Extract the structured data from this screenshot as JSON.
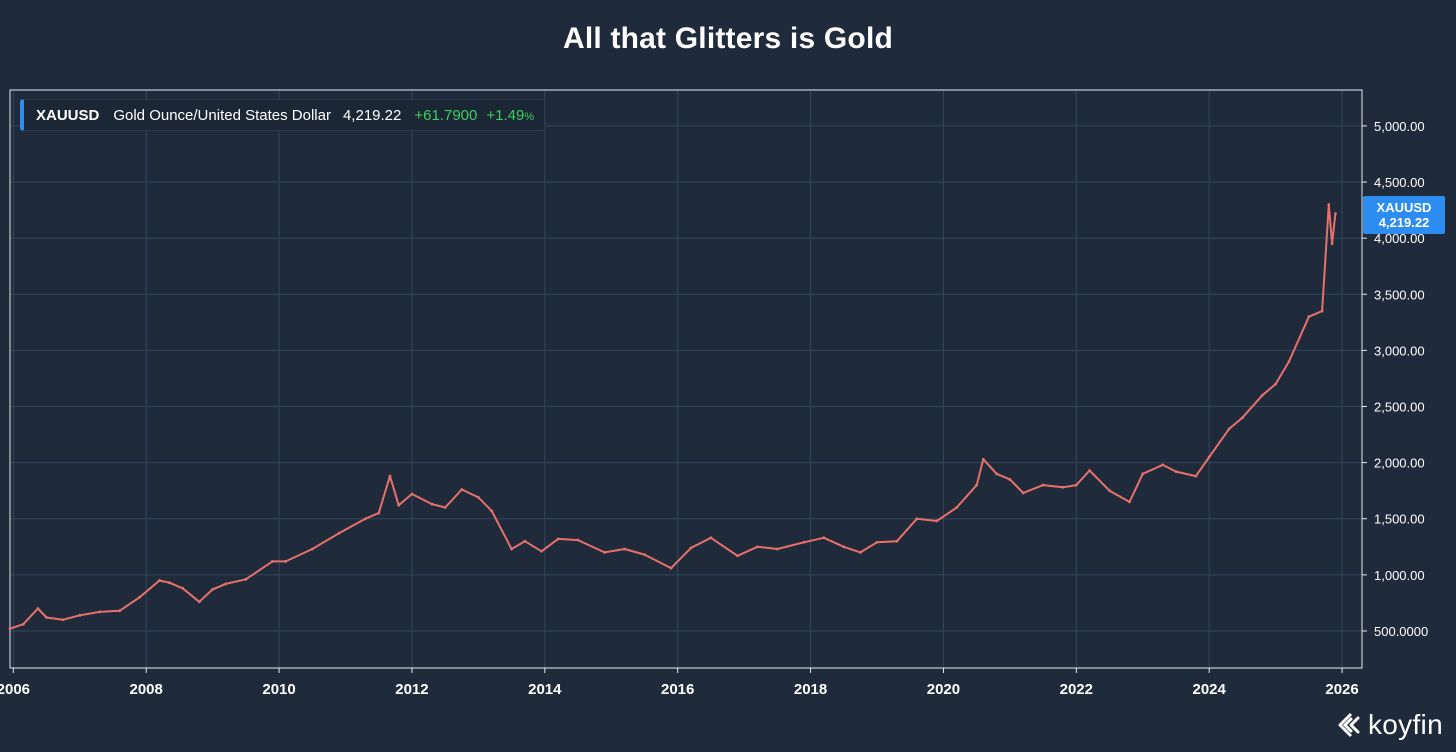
{
  "chart_data": {
    "type": "line",
    "title": "All that Glitters is Gold",
    "xlabel": "",
    "ylabel": "",
    "xlim": [
      2005.95,
      2026.3
    ],
    "ylim": [
      170,
      5320
    ],
    "x_ticks": [
      2006,
      2008,
      2010,
      2012,
      2014,
      2016,
      2018,
      2020,
      2022,
      2024,
      2026
    ],
    "x_tick_labels": [
      "2006",
      "2008",
      "2010",
      "2012",
      "2014",
      "2016",
      "2018",
      "2020",
      "2022",
      "2024",
      "2026"
    ],
    "y_ticks": [
      500,
      1000,
      1500,
      2000,
      2500,
      3000,
      3500,
      4000,
      4500,
      5000
    ],
    "y_tick_labels": [
      "500.0000",
      "1,000.00",
      "1,500.00",
      "2,000.00",
      "2,500.00",
      "3,000.00",
      "3,500.00",
      "4,000.00",
      "4,500.00",
      "5,000.00"
    ],
    "grid": true,
    "legend_position": "top-left",
    "series": [
      {
        "name": "XAUUSD",
        "color": "#e8706b",
        "x": [
          2005.95,
          2006.15,
          2006.37,
          2006.5,
          2006.75,
          2007.0,
          2007.3,
          2007.6,
          2007.9,
          2008.2,
          2008.35,
          2008.55,
          2008.8,
          2009.0,
          2009.2,
          2009.5,
          2009.9,
          2010.1,
          2010.5,
          2010.9,
          2011.3,
          2011.5,
          2011.67,
          2011.8,
          2012.0,
          2012.3,
          2012.5,
          2012.75,
          2013.0,
          2013.2,
          2013.5,
          2013.7,
          2013.95,
          2014.2,
          2014.5,
          2014.9,
          2015.2,
          2015.5,
          2015.9,
          2016.2,
          2016.5,
          2016.9,
          2017.2,
          2017.5,
          2017.9,
          2018.2,
          2018.5,
          2018.75,
          2019.0,
          2019.3,
          2019.6,
          2019.9,
          2020.2,
          2020.5,
          2020.6,
          2020.8,
          2021.0,
          2021.2,
          2021.5,
          2021.8,
          2022.0,
          2022.2,
          2022.5,
          2022.8,
          2023.0,
          2023.3,
          2023.5,
          2023.8,
          2024.0,
          2024.3,
          2024.5,
          2024.8,
          2025.0,
          2025.2,
          2025.5,
          2025.7,
          2025.8,
          2025.85,
          2025.9
        ],
        "values": [
          520,
          560,
          700,
          620,
          600,
          640,
          670,
          680,
          800,
          950,
          930,
          880,
          760,
          870,
          920,
          960,
          1120,
          1120,
          1230,
          1370,
          1500,
          1550,
          1880,
          1620,
          1720,
          1630,
          1600,
          1760,
          1690,
          1570,
          1230,
          1300,
          1210,
          1320,
          1310,
          1200,
          1230,
          1180,
          1060,
          1240,
          1330,
          1170,
          1250,
          1230,
          1290,
          1330,
          1250,
          1200,
          1290,
          1300,
          1500,
          1480,
          1600,
          1800,
          2030,
          1900,
          1850,
          1730,
          1800,
          1780,
          1800,
          1930,
          1750,
          1650,
          1900,
          1980,
          1920,
          1880,
          2050,
          2300,
          2400,
          2600,
          2700,
          2900,
          3300,
          3350,
          4300,
          3950,
          4219.22
        ]
      }
    ]
  },
  "legend": {
    "symbol": "XAUUSD",
    "name": "Gold Ounce/United States Dollar",
    "price": "4,219.22",
    "change": "+61.7900",
    "change_pct": "+1.49",
    "pct_sign": "%"
  },
  "price_tag": {
    "symbol": "XAUUSD",
    "price": "4,219.22"
  },
  "brand": {
    "name": "koyfin"
  },
  "colors": {
    "background": "#1f2b3b",
    "grid": "#34465c",
    "axis": "#e6e9ee",
    "line": "#e8706b",
    "accent": "#2d8cf0",
    "positive": "#3ecf5c"
  }
}
